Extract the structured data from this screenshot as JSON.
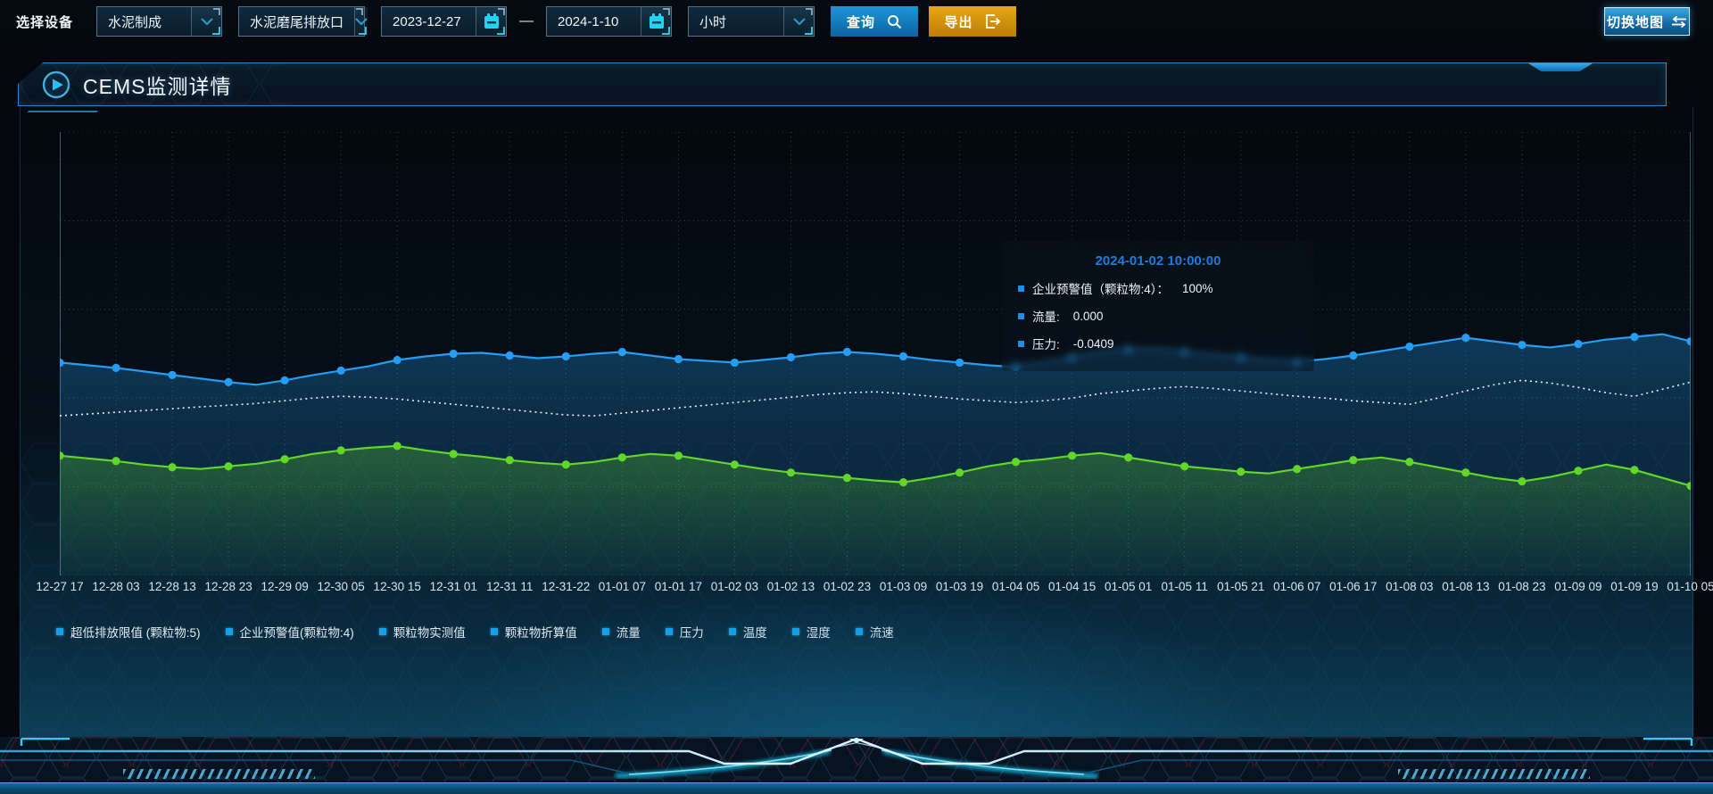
{
  "toolbar": {
    "device_label": "选择设备",
    "device_value": "水泥制成",
    "outlet_value": "水泥磨尾排放口",
    "date_start": "2023-12-27",
    "date_separator": "—",
    "date_end": "2024-1-10",
    "interval_value": "小时",
    "query_label": "查询",
    "export_label": "导出",
    "switch_map_label": "切换地图"
  },
  "panel": {
    "title": "CEMS监测详情"
  },
  "tooltip": {
    "title": "2024-01-02 10:00:00",
    "rows": [
      {
        "label": "企业预警值（颗粒物:4）：",
        "value": "100%"
      },
      {
        "label": "流量:",
        "value": "0.000"
      },
      {
        "label": "压力:",
        "value": "-0.0409"
      }
    ]
  },
  "chart_data": {
    "type": "line",
    "title": "",
    "xlabel": "",
    "ylabel": "",
    "y_axis_labels_visible": false,
    "ylim": [
      0,
      100
    ],
    "grid": true,
    "legend_position": "bottom-left",
    "x_tick_labels": [
      "12-27 17",
      "12-28 03",
      "12-28 13",
      "12-28 23",
      "12-29 09",
      "12-30 05",
      "12-30 15",
      "12-31 01",
      "12-31 11",
      "12-31-22",
      "01-01 07",
      "01-01 17",
      "01-02 03",
      "01-02 13",
      "01-02 23",
      "01-03 09",
      "01-03 19",
      "01-04 05",
      "01-04 15",
      "01-05 01",
      "01-05 11",
      "01-05 21",
      "01-06 07",
      "01-06 17",
      "01-08 03",
      "01-08 13",
      "01-08 23",
      "01-09 09",
      "01-09 19",
      "01-10 05"
    ],
    "legend": [
      "超低排放限值 (颗粒物:5)",
      "企业预警值(颗粒物:4)",
      "颗粒物实测值",
      "颗粒物折算值",
      "流量",
      "压力",
      "温度",
      "湿度",
      "流速"
    ],
    "series": [
      {
        "name": "企业预警值(颗粒物:4)",
        "style": "solid",
        "color": "#249df2",
        "marker": true,
        "area": true,
        "values": [
          48,
          47.4,
          46.8,
          46,
          45.2,
          44.4,
          43.6,
          43,
          44,
          45.2,
          46.2,
          47.2,
          48.6,
          49.4,
          50,
          50.2,
          49.6,
          49,
          49.4,
          50,
          50.4,
          49.6,
          48.8,
          48.4,
          48,
          48.6,
          49.2,
          50,
          50.4,
          50,
          49.4,
          48.6,
          48,
          47.4,
          47,
          48,
          49.2,
          50.4,
          51,
          51,
          50.4,
          49.8,
          49.2,
          48.6,
          48.2,
          48.8,
          49.6,
          50.6,
          51.6,
          52.6,
          53.6,
          52.8,
          52,
          51.4,
          52.2,
          53.2,
          53.8,
          54.4,
          52.8
        ]
      },
      {
        "name": "超低排放限值 (颗粒物:5)",
        "style": "dotted",
        "color": "#eaf3f8",
        "marker": false,
        "area": false,
        "values": [
          36,
          36.4,
          36.8,
          37.2,
          37.6,
          38,
          38.4,
          38.8,
          39.4,
          40,
          40.4,
          40.2,
          39.8,
          39.2,
          38.6,
          38,
          37.4,
          36.8,
          36.2,
          36,
          36.6,
          37.2,
          37.8,
          38.4,
          39,
          39.6,
          40.2,
          40.8,
          41.2,
          41.4,
          41,
          40.4,
          39.8,
          39.4,
          39,
          39.4,
          40,
          41,
          41.6,
          42.2,
          42.6,
          42.2,
          41.6,
          41,
          40.4,
          40,
          39.4,
          39,
          38.6,
          40,
          41.6,
          43,
          44,
          43.4,
          42.4,
          41.2,
          40.4,
          42,
          43.6
        ]
      },
      {
        "name": "颗粒物实测值",
        "style": "solid",
        "color": "#63d62a",
        "marker": true,
        "area": true,
        "values": [
          27,
          26.4,
          25.8,
          25,
          24.4,
          24,
          24.6,
          25.2,
          26.2,
          27.4,
          28.2,
          28.8,
          29.2,
          28.2,
          27.4,
          26.8,
          26,
          25.4,
          25,
          25.6,
          26.6,
          27.4,
          27,
          26,
          25,
          24,
          23.2,
          22.6,
          22,
          21.4,
          21,
          22,
          23.2,
          24.6,
          25.6,
          26.2,
          27,
          27.6,
          26.6,
          25.6,
          24.6,
          24,
          23.4,
          23,
          24,
          25,
          26,
          26.6,
          25.6,
          24.4,
          23.2,
          22,
          21.2,
          22.2,
          23.6,
          25,
          23.8,
          22,
          20.2
        ]
      }
    ],
    "colors": {
      "legend_marker": "#17a0e8",
      "grid": "#9fd4e4",
      "tooltip_title": "#1d7ddc"
    }
  }
}
